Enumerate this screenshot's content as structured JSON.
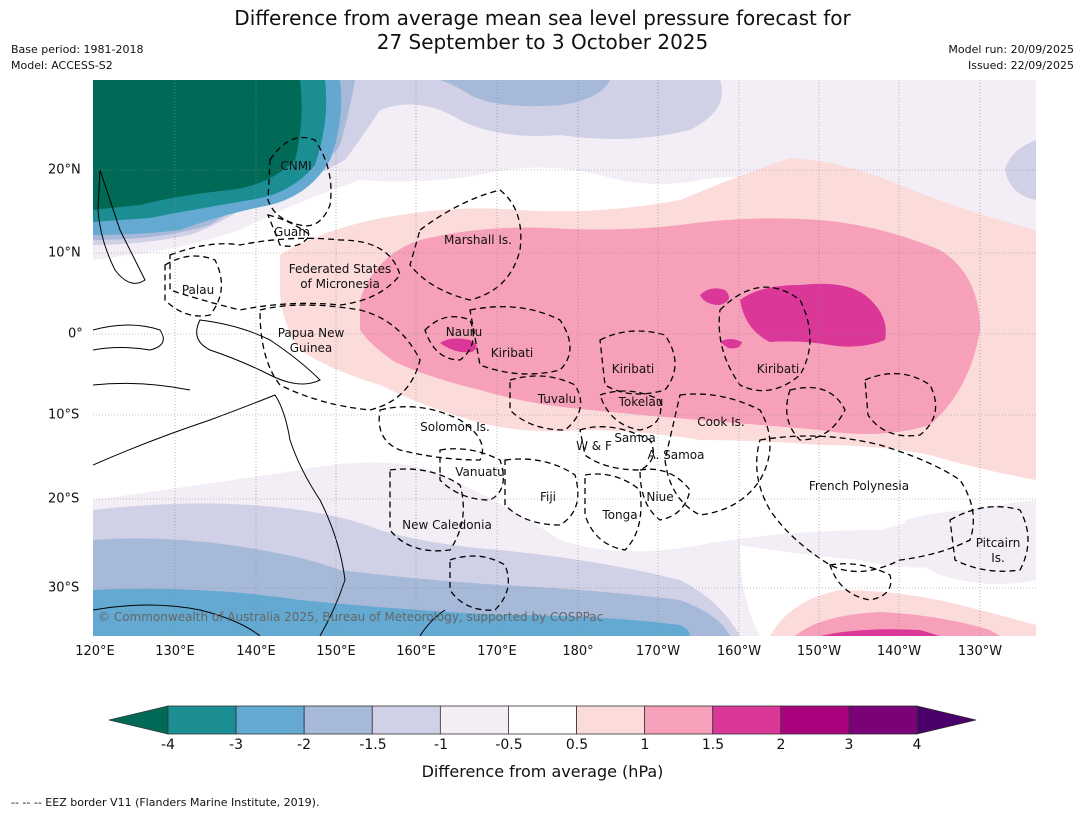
{
  "title_line1": "Difference from average mean sea level pressure forecast for",
  "title_line2": "27 September to 3 October 2025",
  "meta_left": [
    "Base period: 1981-2018",
    "Model: ACCESS-S2"
  ],
  "meta_right": [
    "Model run: 20/09/2025",
    "Issued: 22/09/2025"
  ],
  "copyright": "© Commonwealth of Australia 2025, Bureau of Meteorology, supported by COSPPac",
  "lon_labels": [
    "120°E",
    "130°E",
    "140°E",
    "150°E",
    "160°E",
    "170°E",
    "180°",
    "170°W",
    "160°W",
    "150°W",
    "140°W",
    "130°W"
  ],
  "lat_labels": [
    "20°N",
    "10°N",
    "0°",
    "10°S",
    "20°S",
    "30°S"
  ],
  "place_labels": [
    "CNMI",
    "Guam",
    "Marshall Is.",
    "Federated States",
    "of Micronesia",
    "Palau",
    "Papua New",
    "Guinea",
    "Nauru",
    "Kiribati",
    "Kiribati",
    "Kiribati",
    "Tuvalu",
    "Tokelau",
    "Cook Is.",
    "Solomon Is.",
    "Samoa",
    "W & F",
    "A. Samoa",
    "Vanuatu",
    "Fiji",
    "Niue",
    "French Polynesia",
    "Tonga",
    "New Caledonia",
    "Pitcairn",
    "Is."
  ],
  "colorbar": {
    "ticks": [
      "-4",
      "-3",
      "-2",
      "-1.5",
      "-1",
      "-0.5",
      "0.5",
      "1",
      "1.5",
      "2",
      "3",
      "4"
    ],
    "colors": [
      "#1b8e94",
      "#63a9d1",
      "#a6b9d9",
      "#d0d1e6",
      "#f3edf5",
      "#ffffff",
      "#fcdcdb",
      "#f7a0b9",
      "#db3799",
      "#ab027f",
      "#7a0177"
    ],
    "extend_low": "#006a57",
    "extend_high": "#49006a",
    "label": "Difference from average (hPa)"
  },
  "footnote": "--  --  -- EEZ border V11 (Flanders Marine Institute, 2019)."
}
